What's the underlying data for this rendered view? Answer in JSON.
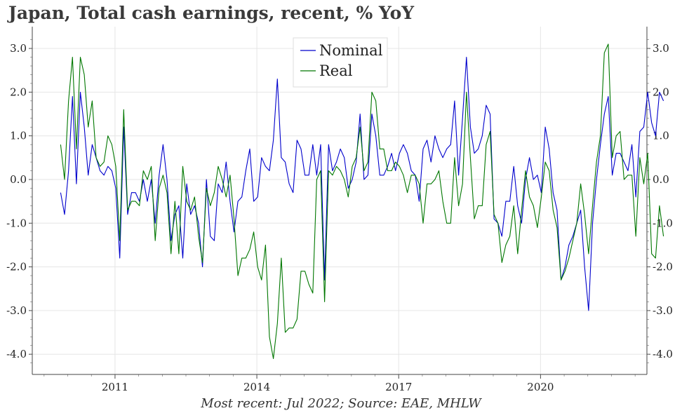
{
  "chart_data": {
    "type": "line",
    "title": "Japan, Total cash earnings, recent, % YoY",
    "source": "Most recent: Jul 2022; Source: EAE, MHLW",
    "xlabel": "",
    "ylabel": "",
    "ylim": [
      -4.4,
      3.4
    ],
    "yticks": [
      "-4.0",
      "-3.0",
      "-2.0",
      "-1.0",
      "0.0",
      "1.0",
      "2.0",
      "3.0"
    ],
    "ytick_values": [
      -4,
      -3,
      -2,
      -1,
      0,
      1,
      2,
      3
    ],
    "xticks": [
      "2011",
      "2014",
      "2017",
      "2020"
    ],
    "xtick_positions": [
      2011,
      2014,
      2017,
      2020
    ],
    "xlim": [
      2009.25,
      2022.25
    ],
    "start_year": 2009.85,
    "step_years": 0.08333,
    "legend_position": "top-center",
    "grid": true,
    "series": [
      {
        "name": "Nominal",
        "color": "#0000cc",
        "values": [
          -0.3,
          -0.8,
          0.2,
          1.9,
          -0.1,
          2.0,
          1.2,
          0.1,
          0.8,
          0.5,
          0.2,
          0.1,
          0.3,
          0.2,
          -0.2,
          -1.8,
          1.2,
          -0.8,
          -0.3,
          -0.3,
          -0.5,
          0.0,
          -0.5,
          0.0,
          -1.0,
          0.1,
          0.8,
          0.0,
          -1.4,
          -0.8,
          -0.6,
          -1.8,
          -0.1,
          -0.8,
          -0.6,
          -1.0,
          -2.0,
          0.0,
          -1.3,
          -1.4,
          -0.1,
          -0.3,
          0.4,
          -0.5,
          -1.2,
          -0.5,
          -0.4,
          0.2,
          0.7,
          -0.5,
          -0.4,
          0.5,
          0.3,
          0.2,
          0.9,
          2.3,
          0.5,
          0.4,
          -0.1,
          -0.3,
          0.9,
          0.7,
          0.1,
          0.1,
          0.8,
          0.1,
          0.8,
          -2.3,
          0.8,
          0.2,
          0.4,
          0.7,
          0.5,
          -0.2,
          0.0,
          0.4,
          1.5,
          0.0,
          0.1,
          1.5,
          1.0,
          0.1,
          0.1,
          0.3,
          0.6,
          0.2,
          0.6,
          0.8,
          0.6,
          0.2,
          0.1,
          -0.5,
          0.7,
          0.9,
          0.4,
          1.0,
          0.7,
          0.5,
          0.7,
          0.8,
          1.8,
          0.1,
          1.4,
          2.8,
          1.2,
          0.6,
          0.7,
          1.0,
          1.7,
          1.5,
          -0.9,
          -1.0,
          -1.3,
          -0.5,
          -0.5,
          0.3,
          -0.6,
          -1.0,
          0.0,
          0.5,
          0.0,
          0.1,
          -0.3,
          1.2,
          0.7,
          -0.3,
          -0.7,
          -2.3,
          -2.0,
          -1.5,
          -1.3,
          -1.0,
          -0.7,
          -2.0,
          -3.0,
          -1.0,
          0.0,
          0.8,
          1.5,
          1.9,
          0.1,
          0.6,
          0.6,
          0.4,
          0.2,
          0.8,
          -0.4,
          1.1,
          1.2,
          2.0,
          1.3,
          1.0,
          2.0,
          1.8
        ]
      },
      {
        "name": "Real",
        "color": "#007700",
        "values": [
          0.8,
          0.0,
          1.8,
          2.8,
          0.7,
          2.8,
          2.4,
          1.2,
          1.8,
          0.5,
          0.3,
          0.4,
          1.0,
          0.8,
          0.3,
          -1.4,
          1.6,
          -0.7,
          -0.5,
          -0.5,
          -0.6,
          0.2,
          0.0,
          0.3,
          -1.4,
          -0.2,
          0.1,
          -0.3,
          -1.7,
          -0.5,
          -1.7,
          0.3,
          -0.5,
          -0.7,
          -0.4,
          -1.3,
          -1.9,
          -0.2,
          -0.6,
          -0.3,
          0.3,
          0.0,
          -0.4,
          0.1,
          -0.9,
          -2.2,
          -1.8,
          -1.8,
          -1.6,
          -1.2,
          -2.0,
          -2.3,
          -1.5,
          -3.6,
          -4.1,
          -3.3,
          -1.8,
          -3.5,
          -3.4,
          -3.4,
          -3.2,
          -2.1,
          -2.1,
          -2.4,
          -2.6,
          0.0,
          0.2,
          -2.8,
          0.2,
          0.1,
          0.3,
          0.2,
          0.0,
          -0.4,
          0.3,
          0.5,
          1.2,
          0.2,
          0.4,
          2.0,
          1.8,
          0.7,
          0.7,
          0.2,
          0.2,
          0.4,
          0.3,
          0.1,
          -0.3,
          0.1,
          0.1,
          -0.1,
          -1.0,
          -0.1,
          -0.1,
          0.0,
          0.2,
          -0.5,
          -1.0,
          -1.0,
          0.5,
          -0.6,
          -0.1,
          2.0,
          0.5,
          -0.9,
          -0.6,
          -0.6,
          0.8,
          1.1,
          -0.8,
          -1.0,
          -1.9,
          -1.5,
          -1.3,
          -0.6,
          -1.7,
          -0.7,
          0.2,
          -0.4,
          -0.6,
          -1.1,
          -0.4,
          0.4,
          0.2,
          -0.7,
          -1.1,
          -2.3,
          -2.1,
          -1.8,
          -1.4,
          -1.0,
          -0.1,
          -0.8,
          -1.7,
          -0.6,
          0.4,
          1.0,
          2.9,
          3.1,
          0.5,
          1.0,
          1.1,
          0.0,
          0.1,
          0.1,
          -1.3,
          0.5,
          -0.1,
          0.6,
          -1.7,
          -1.8,
          -0.6,
          -1.3
        ]
      }
    ]
  }
}
